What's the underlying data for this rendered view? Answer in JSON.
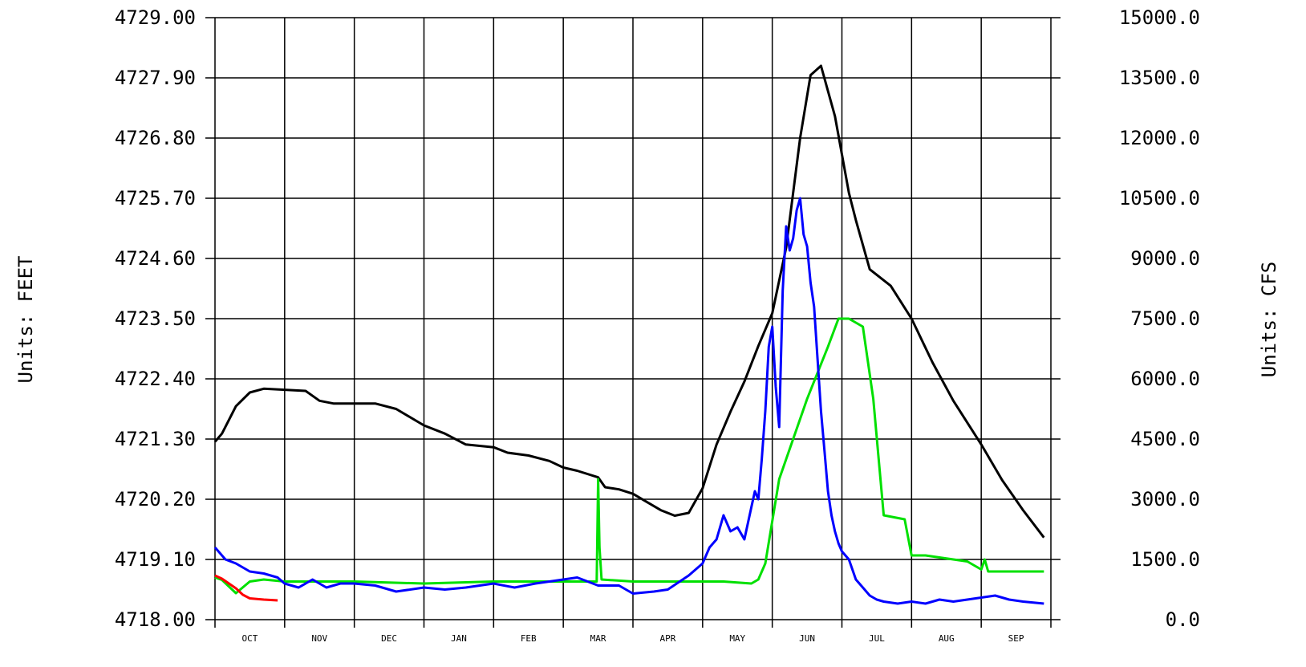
{
  "chart_data": {
    "type": "line",
    "title": "",
    "y_left": {
      "label": "Units: FEET",
      "range": [
        4718.0,
        4729.0
      ],
      "ticks": [
        "4718.00",
        "4719.10",
        "4720.20",
        "4721.30",
        "4722.40",
        "4723.50",
        "4724.60",
        "4725.70",
        "4726.80",
        "4727.90",
        "4729.00"
      ]
    },
    "y_right": {
      "label": "Units: CFS",
      "range": [
        0,
        15000
      ],
      "ticks": [
        "0.0",
        "1500.0",
        "3000.0",
        "4500.0",
        "6000.0",
        "7500.0",
        "9000.0",
        "10500.0",
        "12000.0",
        "13500.0",
        "15000.0"
      ]
    },
    "months": [
      "OCT",
      "NOV",
      "DEC",
      "JAN",
      "FEB",
      "MAR",
      "APR",
      "MAY",
      "JUN",
      "JUL",
      "AUG",
      "SEP"
    ],
    "x_unit": "month index (0 = start of OCT, 12 = end of SEP)",
    "grid": true,
    "series": [
      {
        "color": "#000000",
        "axis": "left",
        "x": [
          0,
          0.1,
          0.3,
          0.5,
          0.7,
          1.0,
          1.3,
          1.5,
          1.7,
          2.0,
          2.3,
          2.6,
          3.0,
          3.3,
          3.6,
          4.0,
          4.2,
          4.5,
          4.8,
          5.0,
          5.2,
          5.5,
          5.6,
          5.8,
          6.0,
          6.2,
          6.4,
          6.6,
          6.8,
          7.0,
          7.2,
          7.4,
          7.6,
          7.8,
          8.0,
          8.2,
          8.4,
          8.55,
          8.7,
          8.9,
          9.1,
          9.2,
          9.4,
          9.7,
          10.0,
          10.3,
          10.6,
          11.0,
          11.3,
          11.6,
          11.9
        ],
        "y": [
          4721.25,
          4721.4,
          4721.9,
          4722.15,
          4722.22,
          4722.2,
          4722.18,
          4722.0,
          4721.95,
          4721.95,
          4721.95,
          4721.85,
          4721.55,
          4721.4,
          4721.2,
          4721.15,
          4721.05,
          4721.0,
          4720.9,
          4720.78,
          4720.72,
          4720.6,
          4720.42,
          4720.38,
          4720.3,
          4720.15,
          4720.0,
          4719.9,
          4719.95,
          4720.4,
          4721.2,
          4721.8,
          4722.35,
          4723.0,
          4723.6,
          4724.8,
          4726.8,
          4727.95,
          4728.12,
          4727.2,
          4725.8,
          4725.3,
          4724.4,
          4724.1,
          4723.5,
          4722.7,
          4722.0,
          4721.2,
          4720.55,
          4720.0,
          4719.5
        ]
      },
      {
        "color": "#00e000",
        "axis": "right",
        "x": [
          0,
          0.1,
          0.3,
          0.5,
          0.7,
          1.0,
          2.0,
          3.0,
          4.0,
          5.0,
          5.48,
          5.5,
          5.52,
          5.55,
          6.0,
          6.5,
          7.0,
          7.3,
          7.7,
          7.8,
          7.9,
          8.1,
          8.3,
          8.5,
          8.8,
          8.95,
          9.1,
          9.3,
          9.45,
          9.6,
          9.9,
          10.0,
          10.2,
          10.8,
          11.0,
          11.05,
          11.1,
          11.5,
          11.9
        ],
        "y": [
          1050,
          990,
          660,
          950,
          1000,
          950,
          950,
          900,
          950,
          950,
          950,
          3500,
          1800,
          1000,
          950,
          950,
          950,
          950,
          900,
          1000,
          1400,
          3500,
          4500,
          5500,
          6800,
          7500,
          7500,
          7300,
          5500,
          2600,
          2500,
          1600,
          1600,
          1450,
          1250,
          1500,
          1200,
          1200,
          1200
        ]
      },
      {
        "color": "#ff0000",
        "axis": "right",
        "x": [
          0,
          0.1,
          0.2,
          0.3,
          0.4,
          0.5,
          0.7,
          0.9
        ],
        "y": [
          1100,
          1020,
          900,
          780,
          620,
          530,
          500,
          480
        ]
      },
      {
        "color": "#0000ff",
        "axis": "right",
        "x": [
          0,
          0.15,
          0.3,
          0.5,
          0.7,
          0.9,
          1.0,
          1.2,
          1.4,
          1.6,
          1.8,
          2.0,
          2.3,
          2.6,
          3.0,
          3.3,
          3.6,
          4.0,
          4.3,
          4.6,
          5.0,
          5.2,
          5.5,
          5.8,
          6.0,
          6.3,
          6.5,
          6.8,
          7.0,
          7.1,
          7.2,
          7.3,
          7.4,
          7.5,
          7.6,
          7.7,
          7.75,
          7.8,
          7.85,
          7.9,
          7.95,
          8.0,
          8.05,
          8.1,
          8.15,
          8.2,
          8.25,
          8.3,
          8.35,
          8.4,
          8.45,
          8.5,
          8.55,
          8.6,
          8.65,
          8.7,
          8.75,
          8.8,
          8.85,
          8.9,
          8.95,
          9.0,
          9.1,
          9.2,
          9.3,
          9.4,
          9.5,
          9.6,
          9.8,
          10.0,
          10.2,
          10.4,
          10.6,
          10.8,
          11.0,
          11.2,
          11.4,
          11.6,
          11.9
        ],
        "y": [
          1800,
          1500,
          1400,
          1200,
          1150,
          1050,
          900,
          800,
          1000,
          800,
          900,
          900,
          850,
          700,
          800,
          750,
          800,
          900,
          800,
          900,
          1000,
          1050,
          850,
          850,
          650,
          700,
          750,
          1100,
          1400,
          1800,
          2000,
          2600,
          2200,
          2300,
          2000,
          2800,
          3200,
          3000,
          4000,
          5200,
          6800,
          7300,
          5800,
          4800,
          8200,
          9800,
          9200,
          9500,
          10200,
          10500,
          9600,
          9300,
          8400,
          7800,
          6500,
          5200,
          4200,
          3200,
          2600,
          2200,
          1900,
          1700,
          1500,
          1000,
          800,
          600,
          500,
          450,
          400,
          450,
          400,
          500,
          450,
          500,
          550,
          600,
          500,
          450,
          400
        ]
      }
    ]
  }
}
